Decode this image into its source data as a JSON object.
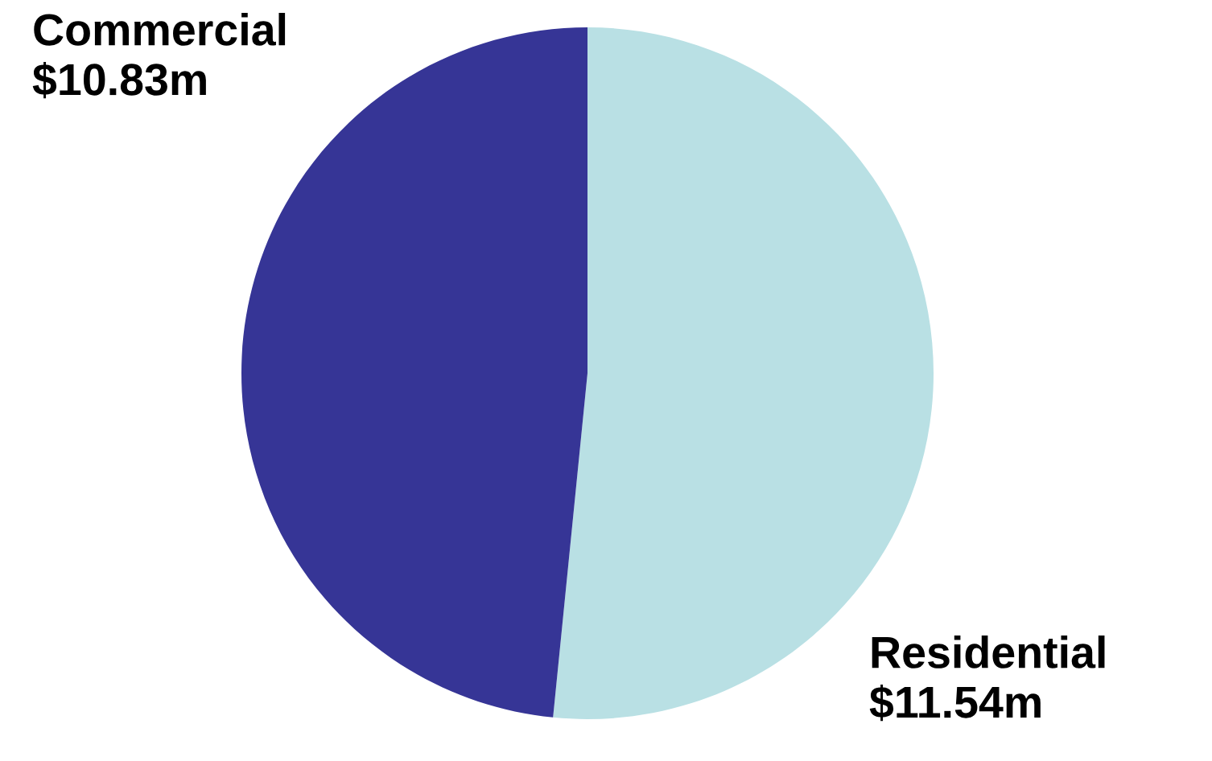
{
  "chart_data": {
    "type": "pie",
    "categories": [
      "Residential",
      "Commercial"
    ],
    "values": [
      11.54,
      10.83
    ],
    "value_labels": [
      "$11.54m",
      "$10.83m"
    ],
    "colors": [
      "#b9e0e4",
      "#363596"
    ],
    "legend": false
  }
}
